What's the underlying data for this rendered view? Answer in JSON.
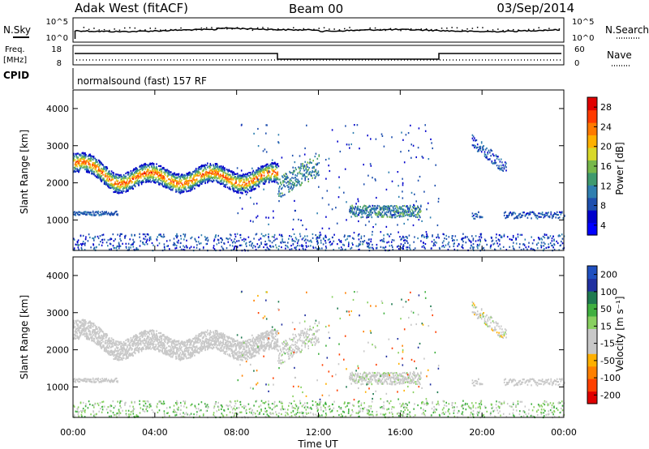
{
  "header": {
    "station": "Adak West (fitACF)",
    "beam": "Beam 00",
    "date": "03/Sep/2014"
  },
  "top_panels": {
    "nsky_label": "N.Sky",
    "nsearch_label": "N.Search",
    "noise_ticks": [
      "10^5",
      "10^0"
    ],
    "freq_label": "Freq.",
    "freq_unit": "[MHz]",
    "freq_ticks": [
      "18",
      "8"
    ],
    "nave_label": "Nave",
    "nave_ticks": [
      "60",
      "0"
    ],
    "cpid_label": "CPID",
    "cpid_text": "normalsound (fast) 157 RF"
  },
  "chart_data": [
    {
      "type": "heatmap",
      "name": "power",
      "ylabel": "Slant Range [km]",
      "y_ticks": [
        "4000",
        "3000",
        "2000",
        "1000"
      ],
      "ylim": [
        180,
        4500
      ],
      "colorbar_label": "Power [dB]",
      "colorbar_ticks": [
        "28",
        "24",
        "20",
        "16",
        "12",
        "8",
        "4"
      ],
      "colorbar_colors": [
        "#0000ff",
        "#0000cc",
        "#1e4fae",
        "#2f7fb0",
        "#3f9a6e",
        "#77b84a",
        "#d8d82a",
        "#ffb000",
        "#ff7a00",
        "#ff3a00",
        "#e00000"
      ],
      "clim": [
        0,
        30
      ],
      "echo_regions": [
        {
          "t_start": 0.0,
          "t_end": 10.0,
          "range_center": 2150,
          "range_width": 450,
          "peak_db": 22
        },
        {
          "t_start": 0.0,
          "t_end": 2.2,
          "range_center": 1200,
          "range_width": 120,
          "peak_db": 7
        },
        {
          "t_start": 10.0,
          "t_end": 12.0,
          "range_center": 2300,
          "range_width": 500,
          "peak_db": 14
        },
        {
          "t_start": 13.5,
          "t_end": 17.0,
          "range_center": 1250,
          "range_width": 300,
          "peak_db": 14
        },
        {
          "t_start": 19.5,
          "t_end": 21.2,
          "range_center": 2900,
          "range_width": 500,
          "peak_db": 9
        },
        {
          "t_start": 21.0,
          "t_end": 24.0,
          "range_center": 1150,
          "range_width": 150,
          "peak_db": 8
        }
      ]
    },
    {
      "type": "heatmap",
      "name": "velocity",
      "ylabel": "Slant Range [km]",
      "y_ticks": [
        "4000",
        "3000",
        "2000",
        "1000"
      ],
      "ylim": [
        180,
        4500
      ],
      "colorbar_label": "Velocity [m s⁻¹]",
      "colorbar_ticks": [
        "200",
        "100",
        "50",
        "15",
        "-15",
        "-50",
        "-100",
        "-200"
      ],
      "colorbar_colors": [
        "#e00000",
        "#ff4000",
        "#ff8000",
        "#ffb000",
        "#c8c8c8",
        "#c8c8c8",
        "#88d060",
        "#40b040",
        "#1f7a50",
        "#2030a0",
        "#2050c0"
      ],
      "clim": [
        -250,
        250
      ]
    }
  ],
  "x_axis": {
    "label": "Time UT",
    "ticks": [
      "00:00",
      "04:00",
      "08:00",
      "12:00",
      "16:00",
      "20:00",
      "00:00"
    ],
    "xlim": [
      0,
      24
    ]
  }
}
